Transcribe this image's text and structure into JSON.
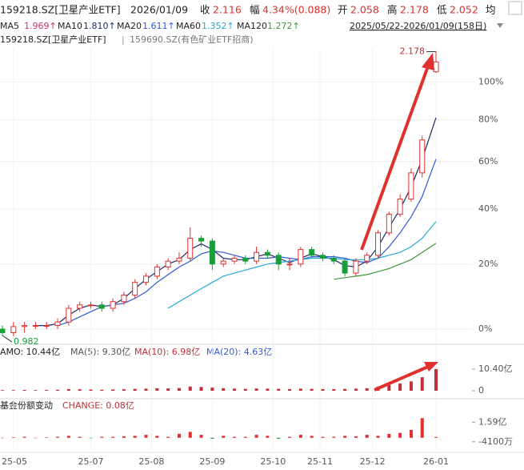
{
  "header": {
    "code": "159218.SZ[卫星产业ETF]",
    "date": "2026/01/09",
    "close_label": "收",
    "close": "2.116",
    "chg_label": "幅",
    "chg": "4.34%(0.088)",
    "open_label": "开",
    "open": "2.058",
    "high_label": "高",
    "high": "2.178",
    "low_label": "低",
    "low": "2.052",
    "avg_label": "均",
    "ma": [
      {
        "name": "MA5",
        "value": "1.969↑"
      },
      {
        "name": "MA10",
        "value": "1.810↑"
      },
      {
        "name": "MA20",
        "value": "1.611↑"
      },
      {
        "name": "MA60",
        "value": "1.352↑"
      },
      {
        "name": "MA120",
        "value": "1.272↑"
      }
    ],
    "range": "2025/05/22-2026/01/09(158日)",
    "main": "159218.SZ[卫星产业ETF]",
    "sep": "|",
    "compare": "159690.SZ(有色矿业ETF招商)",
    "amo": [
      "AMO: 10.44亿",
      "MA(5): 9.30亿",
      "MA(10): 6.98亿",
      "MA(20): 4.63亿"
    ],
    "fund": "基金份额变动",
    "change": "CHANGE: 0.08亿"
  },
  "chart_data": [
    {
      "type": "candlestick",
      "log_scale": true,
      "grid": true,
      "up_color": "#e0302f",
      "down_color": "#1a9e3a",
      "x": [
        0,
        4,
        8,
        12,
        16,
        20,
        24,
        28,
        32,
        36,
        40,
        44,
        48,
        52,
        56,
        60,
        64,
        68,
        72,
        76,
        80,
        84,
        88,
        92,
        96,
        100,
        104,
        108,
        112,
        116,
        120,
        124,
        128,
        132,
        136,
        140,
        144,
        148,
        152,
        157
      ],
      "open": [
        1.0,
        0.99,
        1.007,
        1.01,
        1.01,
        1.01,
        1.02,
        1.06,
        1.07,
        1.07,
        1.06,
        1.08,
        1.1,
        1.14,
        1.16,
        1.19,
        1.21,
        1.22,
        1.29,
        1.28,
        1.2,
        1.21,
        1.22,
        1.21,
        1.24,
        1.23,
        1.2,
        1.2,
        1.25,
        1.23,
        1.22,
        1.21,
        1.17,
        1.21,
        1.23,
        1.31,
        1.38,
        1.44,
        1.55,
        2.058
      ],
      "close": [
        0.99,
        1.007,
        1.01,
        1.01,
        1.01,
        1.02,
        1.06,
        1.07,
        1.07,
        1.06,
        1.08,
        1.1,
        1.14,
        1.16,
        1.19,
        1.21,
        1.22,
        1.29,
        1.28,
        1.2,
        1.21,
        1.22,
        1.21,
        1.24,
        1.23,
        1.2,
        1.2,
        1.25,
        1.23,
        1.22,
        1.21,
        1.17,
        1.21,
        1.23,
        1.31,
        1.38,
        1.44,
        1.55,
        1.7,
        2.116
      ],
      "high": [
        1.01,
        1.02,
        1.02,
        1.02,
        1.02,
        1.03,
        1.07,
        1.08,
        1.08,
        1.08,
        1.09,
        1.11,
        1.15,
        1.17,
        1.2,
        1.22,
        1.24,
        1.33,
        1.3,
        1.29,
        1.22,
        1.23,
        1.23,
        1.26,
        1.25,
        1.24,
        1.22,
        1.26,
        1.26,
        1.24,
        1.23,
        1.22,
        1.22,
        1.24,
        1.32,
        1.39,
        1.46,
        1.57,
        1.72,
        2.178
      ],
      "low": [
        0.982,
        0.98,
        0.99,
        1.0,
        1.0,
        1.0,
        1.01,
        1.05,
        1.06,
        1.05,
        1.05,
        1.07,
        1.09,
        1.13,
        1.15,
        1.18,
        1.2,
        1.21,
        1.26,
        1.18,
        1.19,
        1.2,
        1.2,
        1.2,
        1.22,
        1.18,
        1.18,
        1.19,
        1.22,
        1.21,
        1.2,
        1.16,
        1.16,
        1.2,
        1.22,
        1.3,
        1.37,
        1.43,
        1.53,
        2.052
      ],
      "series": [
        {
          "name": "MA10",
          "color": "#1f2a6b",
          "values": [
            null,
            null,
            null,
            1.01,
            1.01,
            1.015,
            1.04,
            1.06,
            1.07,
            1.065,
            1.07,
            1.09,
            1.12,
            1.15,
            1.175,
            1.2,
            1.215,
            1.25,
            1.27,
            1.25,
            1.22,
            1.215,
            1.215,
            1.225,
            1.235,
            1.22,
            1.205,
            1.22,
            1.235,
            1.225,
            1.215,
            1.195,
            1.19,
            1.21,
            1.26,
            1.33,
            1.4,
            1.49,
            1.61,
            1.81
          ]
        },
        {
          "name": "MA20",
          "color": "#2f5bd6",
          "values": [
            null,
            null,
            null,
            null,
            null,
            1.01,
            1.02,
            1.035,
            1.05,
            1.065,
            1.07,
            1.075,
            1.09,
            1.11,
            1.14,
            1.165,
            1.19,
            1.21,
            1.235,
            1.245,
            1.24,
            1.23,
            1.22,
            1.22,
            1.22,
            1.225,
            1.22,
            1.215,
            1.225,
            1.225,
            1.225,
            1.22,
            1.21,
            1.205,
            1.22,
            1.26,
            1.31,
            1.37,
            1.45,
            1.611
          ]
        },
        {
          "name": "MA60",
          "color": "#2aa7d6",
          "values": [
            null,
            null,
            null,
            null,
            null,
            null,
            null,
            null,
            null,
            null,
            null,
            null,
            null,
            null,
            null,
            1.06,
            1.08,
            1.1,
            1.12,
            1.14,
            1.16,
            1.17,
            1.18,
            1.19,
            1.2,
            1.205,
            1.21,
            1.215,
            1.22,
            1.22,
            1.22,
            1.215,
            1.215,
            1.215,
            1.22,
            1.23,
            1.24,
            1.26,
            1.29,
            1.352
          ]
        },
        {
          "name": "MA120",
          "color": "#3a9a3a",
          "values": [
            null,
            null,
            null,
            null,
            null,
            null,
            null,
            null,
            null,
            null,
            null,
            null,
            null,
            null,
            null,
            null,
            null,
            null,
            null,
            null,
            null,
            null,
            null,
            null,
            null,
            null,
            null,
            null,
            null,
            null,
            1.15,
            1.155,
            1.16,
            1.165,
            1.175,
            1.185,
            1.2,
            1.215,
            1.24,
            1.272
          ]
        }
      ],
      "xlim": [
        0,
        157
      ],
      "ylim": [
        0.969,
        2.2
      ],
      "yticks": [
        {
          "value": 1.0,
          "label": "0%"
        },
        {
          "value": 1.2,
          "label": "20%"
        },
        {
          "value": 1.4,
          "label": "40%"
        },
        {
          "value": 1.6,
          "label": "60%"
        },
        {
          "value": 1.8,
          "label": "80%"
        },
        {
          "value": 2.0,
          "label": "100%"
        }
      ],
      "xticks": [
        {
          "value": 4,
          "label": "25-05"
        },
        {
          "value": 32,
          "label": "25-07"
        },
        {
          "value": 54,
          "label": "25-08"
        },
        {
          "value": 76,
          "label": "25-09"
        },
        {
          "value": 98,
          "label": "25-10"
        },
        {
          "value": 115,
          "label": "25-11"
        },
        {
          "value": 134,
          "label": "25-12"
        },
        {
          "value": 157,
          "label": "26-01"
        }
      ]
    },
    {
      "type": "bar",
      "color": "#c0303a",
      "values": [
        0.3,
        0.3,
        0.4,
        0.3,
        0.4,
        0.5,
        0.8,
        0.7,
        0.6,
        0.5,
        0.6,
        0.7,
        0.9,
        1.0,
        1.2,
        1.1,
        1.3,
        2.0,
        1.8,
        1.5,
        1.2,
        1.0,
        0.9,
        1.1,
        1.0,
        0.9,
        0.8,
        1.0,
        0.9,
        0.8,
        0.8,
        0.9,
        1.0,
        1.2,
        2.0,
        2.8,
        3.5,
        4.5,
        6.5,
        10.44
      ],
      "ylim": [
        0,
        13.9
      ],
      "yticks": [
        {
          "value": 10.4,
          "label": "10.40亿"
        },
        0
      ]
    },
    {
      "type": "bar",
      "color": "#e0302f",
      "values": [
        0,
        0.05,
        0.1,
        0,
        0.05,
        0.1,
        0.2,
        0.1,
        -0.05,
        0.1,
        0.1,
        0.15,
        0.2,
        0.3,
        0.2,
        0.1,
        0.4,
        0.6,
        0.3,
        -0.1,
        0.2,
        0.1,
        0.1,
        0.3,
        0.2,
        -0.1,
        0.1,
        0.3,
        0.2,
        0.1,
        0.1,
        0.2,
        0.15,
        0.3,
        0.2,
        0.4,
        0.5,
        0.8,
        2.0,
        0.08
      ],
      "ylim": [
        -1.08,
        2.59
      ],
      "yticks": [
        {
          "value": 1.59,
          "label": "1.59亿"
        },
        {
          "value": -0.41,
          "label": "-4100万"
        }
      ]
    }
  ]
}
